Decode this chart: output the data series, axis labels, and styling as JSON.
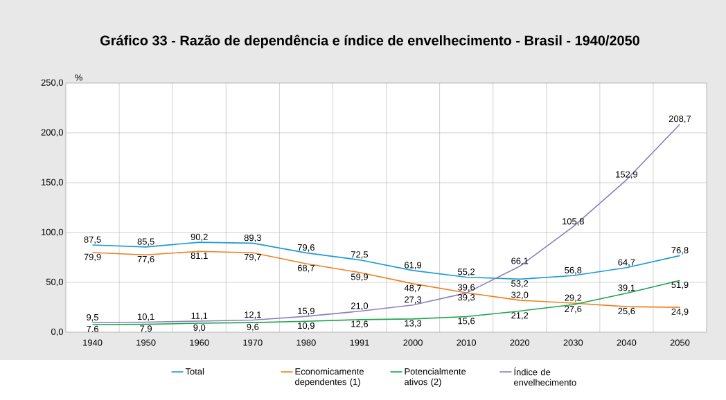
{
  "chart_data": {
    "type": "line",
    "title": "Gráfico 33 - Razão de dependência e índice de envelhecimento - Brasil - 1940/2050",
    "ylabel": "%",
    "categories": [
      "1940",
      "1950",
      "1960",
      "1970",
      "1980",
      "1991",
      "2000",
      "2010",
      "2020",
      "2030",
      "2040",
      "2050"
    ],
    "series": [
      {
        "name": "Total",
        "color": "#1a9ad6",
        "values": [
          87.5,
          85.5,
          90.2,
          89.3,
          79.6,
          72.5,
          61.9,
          55.2,
          53.2,
          56.8,
          64.7,
          76.8
        ],
        "value_labels": [
          "87,5",
          "85,5",
          "90,2",
          "89,3",
          "79,6",
          "72,5",
          "61,9",
          "55,2",
          "53,2",
          "56,8",
          "64,7",
          "76,8"
        ]
      },
      {
        "name": "Economicamente dependentes (1)",
        "color": "#f07f1e",
        "values": [
          79.9,
          77.6,
          81.1,
          79.7,
          68.7,
          59.9,
          48.7,
          39.6,
          32.0,
          29.2,
          25.6,
          24.9
        ],
        "value_labels": [
          "79,9",
          "77,6",
          "81,1",
          "79,7",
          "68,7",
          "59,9",
          "48,7",
          "39,6",
          "32,0",
          "29,2",
          "25,6",
          "24,9"
        ]
      },
      {
        "name": "Potencialmente ativos (2)",
        "color": "#1aa54a",
        "values": [
          7.6,
          7.9,
          9.0,
          9.6,
          10.9,
          12.6,
          13.3,
          15.6,
          21.2,
          27.6,
          39.1,
          51.9
        ],
        "value_labels": [
          "7,6",
          "7,9",
          "9,0",
          "9,6",
          "10,9",
          "12,6",
          "13,3",
          "15,6",
          "21,2",
          "27,6",
          "39,1",
          "51,9"
        ]
      },
      {
        "name": "Índice de envelhecimento",
        "color": "#8b7fc0",
        "values": [
          9.5,
          10.1,
          11.1,
          12.1,
          15.9,
          21.0,
          27.3,
          39.3,
          66.1,
          105.8,
          152.9,
          208.7
        ],
        "value_labels": [
          "9,5",
          "10,1",
          "11,1",
          "12,1",
          "15,9",
          "21,0",
          "27,3",
          "39,3",
          "66,1",
          "105,8",
          "152,9",
          "208,7"
        ]
      }
    ],
    "ylim": [
      0,
      250
    ],
    "yticks": [
      {
        "value": 0,
        "label": "0,0"
      },
      {
        "value": 50,
        "label": "50,0"
      },
      {
        "value": 100,
        "label": "100,0"
      },
      {
        "value": 150,
        "label": "150,0"
      },
      {
        "value": 200,
        "label": "200,0"
      },
      {
        "value": 250,
        "label": "250,0"
      }
    ],
    "grid": true,
    "legend": "bottom"
  }
}
